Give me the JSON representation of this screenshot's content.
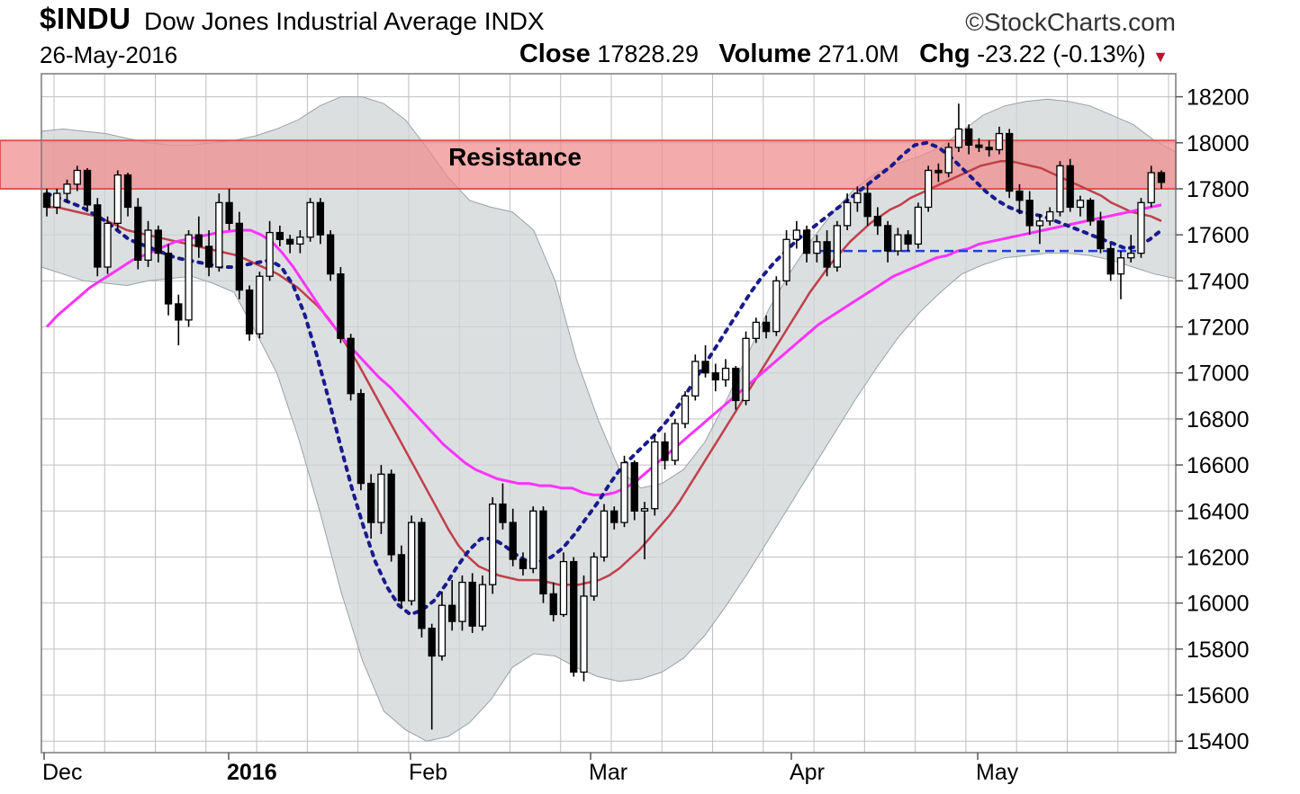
{
  "header": {
    "symbol": "$INDU",
    "name": "Dow Jones Industrial Average",
    "exchange": "INDX",
    "brand": "©StockCharts.com",
    "date": "26-May-2016",
    "close_label": "Close",
    "close_value": "17828.29",
    "volume_label": "Volume",
    "volume_value": "271.0M",
    "chg_label": "Chg",
    "chg_value": "-23.22 (-0.13%)",
    "chg_direction_icon": "down-triangle-icon"
  },
  "colors": {
    "resistance_fill": "#f08a8a",
    "sma_fast": "#c0404a",
    "sma_slow": "#ff33ff",
    "ema_dotted": "#1a1a8c",
    "bollinger_band": "#cfd4d6",
    "support_line": "#1f3fd9",
    "grid": "#bfbfbf"
  },
  "chart_data": {
    "type": "candlestick",
    "title": "",
    "xlabel": "",
    "ylabel": "",
    "ylim": [
      15400,
      18200
    ],
    "y_ticks": [
      "18200",
      "18000",
      "17800",
      "17600",
      "17400",
      "17200",
      "17000",
      "16800",
      "16600",
      "16400",
      "16200",
      "16000",
      "15800",
      "15600",
      "15400"
    ],
    "x_labels": [
      "Dec",
      "2016",
      "Feb",
      "Mar",
      "Apr",
      "May"
    ],
    "x_label_bold": [
      false,
      true,
      false,
      false,
      false,
      false
    ],
    "grid": true,
    "annotation": {
      "text": "Resistance",
      "y_range": [
        17800,
        18010
      ]
    },
    "support_level": 17530,
    "candles": [
      [
        17780,
        17800,
        17680,
        17720
      ],
      [
        17720,
        17800,
        17690,
        17780
      ],
      [
        17780,
        17840,
        17740,
        17820
      ],
      [
        17820,
        17900,
        17790,
        17880
      ],
      [
        17880,
        17890,
        17700,
        17730
      ],
      [
        17730,
        17760,
        17420,
        17460
      ],
      [
        17460,
        17680,
        17430,
        17650
      ],
      [
        17650,
        17880,
        17620,
        17860
      ],
      [
        17860,
        17870,
        17680,
        17720
      ],
      [
        17720,
        17760,
        17450,
        17490
      ],
      [
        17490,
        17660,
        17460,
        17620
      ],
      [
        17620,
        17640,
        17480,
        17520
      ],
      [
        17520,
        17560,
        17250,
        17300
      ],
      [
        17300,
        17340,
        17120,
        17230
      ],
      [
        17230,
        17620,
        17200,
        17600
      ],
      [
        17600,
        17680,
        17500,
        17550
      ],
      [
        17550,
        17620,
        17420,
        17460
      ],
      [
        17460,
        17780,
        17440,
        17740
      ],
      [
        17740,
        17800,
        17620,
        17650
      ],
      [
        17650,
        17700,
        17320,
        17360
      ],
      [
        17360,
        17380,
        17140,
        17170
      ],
      [
        17170,
        17440,
        17150,
        17420
      ],
      [
        17420,
        17660,
        17400,
        17610
      ],
      [
        17610,
        17640,
        17550,
        17580
      ],
      [
        17580,
        17600,
        17520,
        17560
      ],
      [
        17560,
        17620,
        17520,
        17590
      ],
      [
        17590,
        17760,
        17570,
        17740
      ],
      [
        17740,
        17760,
        17560,
        17600
      ],
      [
        17600,
        17620,
        17400,
        17430
      ],
      [
        17430,
        17460,
        17130,
        17150
      ],
      [
        17150,
        17170,
        16880,
        16910
      ],
      [
        16910,
        16930,
        16490,
        16520
      ],
      [
        16520,
        16560,
        16280,
        16350
      ],
      [
        16350,
        16600,
        16300,
        16560
      ],
      [
        16560,
        16580,
        16180,
        16210
      ],
      [
        16210,
        16250,
        15980,
        16010
      ],
      [
        16010,
        16380,
        15990,
        16350
      ],
      [
        16350,
        16370,
        15850,
        15890
      ],
      [
        15890,
        15910,
        15450,
        15770
      ],
      [
        15770,
        16050,
        15750,
        15990
      ],
      [
        15990,
        16100,
        15880,
        15920
      ],
      [
        15920,
        16120,
        15880,
        16090
      ],
      [
        16090,
        16130,
        15870,
        15900
      ],
      [
        15900,
        16120,
        15880,
        16080
      ],
      [
        16080,
        16460,
        16040,
        16430
      ],
      [
        16430,
        16520,
        16320,
        16350
      ],
      [
        16350,
        16410,
        16160,
        16190
      ],
      [
        16190,
        16220,
        16120,
        16150
      ],
      [
        16150,
        16420,
        16130,
        16400
      ],
      [
        16400,
        16420,
        16000,
        16040
      ],
      [
        16040,
        16090,
        15920,
        15950
      ],
      [
        15950,
        16220,
        15940,
        16180
      ],
      [
        16180,
        16200,
        15680,
        15700
      ],
      [
        15700,
        16120,
        15660,
        16030
      ],
      [
        16030,
        16220,
        16010,
        16200
      ],
      [
        16200,
        16430,
        16180,
        16400
      ],
      [
        16400,
        16420,
        16320,
        16350
      ],
      [
        16350,
        16640,
        16330,
        16610
      ],
      [
        16610,
        16620,
        16360,
        16400
      ],
      [
        16400,
        16440,
        16190,
        16410
      ],
      [
        16410,
        16730,
        16380,
        16700
      ],
      [
        16700,
        16740,
        16580,
        16620
      ],
      [
        16620,
        16800,
        16600,
        16780
      ],
      [
        16780,
        16920,
        16760,
        16900
      ],
      [
        16900,
        17080,
        16880,
        17050
      ],
      [
        17050,
        17120,
        16980,
        17000
      ],
      [
        17000,
        17040,
        16920,
        16970
      ],
      [
        16970,
        17060,
        16940,
        17020
      ],
      [
        17020,
        17030,
        16840,
        16880
      ],
      [
        16880,
        17180,
        16860,
        17150
      ],
      [
        17150,
        17240,
        17130,
        17220
      ],
      [
        17220,
        17250,
        17150,
        17180
      ],
      [
        17180,
        17420,
        17160,
        17400
      ],
      [
        17400,
        17620,
        17380,
        17580
      ],
      [
        17580,
        17660,
        17540,
        17620
      ],
      [
        17620,
        17640,
        17480,
        17520
      ],
      [
        17520,
        17600,
        17480,
        17570
      ],
      [
        17570,
        17620,
        17420,
        17460
      ],
      [
        17460,
        17660,
        17440,
        17640
      ],
      [
        17640,
        17780,
        17620,
        17740
      ],
      [
        17740,
        17810,
        17700,
        17780
      ],
      [
        17780,
        17820,
        17640,
        17680
      ],
      [
        17680,
        17720,
        17600,
        17640
      ],
      [
        17640,
        17660,
        17480,
        17530
      ],
      [
        17530,
        17630,
        17510,
        17600
      ],
      [
        17600,
        17620,
        17530,
        17560
      ],
      [
        17560,
        17740,
        17540,
        17720
      ],
      [
        17720,
        17900,
        17700,
        17880
      ],
      [
        17880,
        17910,
        17830,
        17870
      ],
      [
        17870,
        18000,
        17850,
        17980
      ],
      [
        17980,
        18170,
        17960,
        18060
      ],
      [
        18060,
        18080,
        17950,
        17990
      ],
      [
        17990,
        18020,
        17960,
        17980
      ],
      [
        17980,
        18010,
        17940,
        17970
      ],
      [
        17970,
        18070,
        17950,
        18040
      ],
      [
        18040,
        18060,
        17760,
        17790
      ],
      [
        17790,
        17820,
        17690,
        17750
      ],
      [
        17750,
        17790,
        17600,
        17640
      ],
      [
        17640,
        17690,
        17560,
        17660
      ],
      [
        17660,
        17720,
        17640,
        17700
      ],
      [
        17700,
        17920,
        17680,
        17900
      ],
      [
        17900,
        17930,
        17700,
        17720
      ],
      [
        17720,
        17770,
        17680,
        17750
      ],
      [
        17750,
        17760,
        17640,
        17660
      ],
      [
        17660,
        17700,
        17520,
        17540
      ],
      [
        17540,
        17560,
        17400,
        17430
      ],
      [
        17430,
        17530,
        17320,
        17500
      ],
      [
        17500,
        17600,
        17480,
        17520
      ],
      [
        17520,
        17760,
        17500,
        17740
      ],
      [
        17740,
        17900,
        17720,
        17870
      ],
      [
        17870,
        17880,
        17800,
        17828
      ]
    ],
    "series": [
      {
        "name": "",
        "style": "sma_fast",
        "values": [
          17720,
          17720,
          17710,
          17700,
          17690,
          17680,
          17660,
          17640,
          17620,
          17610,
          17600,
          17590,
          17580,
          17570,
          17560,
          17550,
          17540,
          17530,
          17520,
          17510,
          17490,
          17470,
          17450,
          17430,
          17400,
          17370,
          17330,
          17290,
          17240,
          17180,
          17110,
          17040,
          16960,
          16880,
          16800,
          16720,
          16640,
          16560,
          16480,
          16400,
          16320,
          16250,
          16200,
          16160,
          16140,
          16120,
          16110,
          16100,
          16100,
          16100,
          16090,
          16080,
          16080,
          16080,
          16090,
          16100,
          16120,
          16150,
          16190,
          16230,
          16280,
          16330,
          16380,
          16440,
          16510,
          16580,
          16650,
          16720,
          16790,
          16860,
          16930,
          17000,
          17070,
          17140,
          17210,
          17280,
          17350,
          17410,
          17470,
          17520,
          17570,
          17610,
          17650,
          17680,
          17710,
          17730,
          17760,
          17780,
          17800,
          17820,
          17840,
          17860,
          17880,
          17900,
          17910,
          17920,
          17920,
          17910,
          17900,
          17890,
          17870,
          17850,
          17830,
          17810,
          17790,
          17770,
          17740,
          17720,
          17700,
          17690,
          17680,
          17660
        ]
      },
      {
        "name": "",
        "style": "sma_slow",
        "values": [
          17200,
          17250,
          17290,
          17330,
          17370,
          17400,
          17430,
          17460,
          17490,
          17510,
          17530,
          17550,
          17570,
          17580,
          17590,
          17600,
          17610,
          17615,
          17620,
          17620,
          17600,
          17570,
          17520,
          17460,
          17390,
          17320,
          17250,
          17190,
          17130,
          17080,
          17030,
          16980,
          16940,
          16890,
          16840,
          16790,
          16740,
          16690,
          16650,
          16610,
          16580,
          16560,
          16540,
          16530,
          16520,
          16520,
          16510,
          16510,
          16500,
          16500,
          16480,
          16470,
          16470,
          16480,
          16500,
          16530,
          16570,
          16610,
          16650,
          16690,
          16730,
          16770,
          16810,
          16850,
          16890,
          16930,
          16970,
          17010,
          17050,
          17090,
          17130,
          17170,
          17210,
          17240,
          17270,
          17300,
          17330,
          17360,
          17390,
          17420,
          17440,
          17460,
          17480,
          17500,
          17510,
          17530,
          17540,
          17560,
          17570,
          17580,
          17590,
          17600,
          17610,
          17620,
          17630,
          17640,
          17650,
          17660,
          17670,
          17680,
          17690,
          17700,
          17710,
          17720,
          17730
        ]
      },
      {
        "name": "",
        "style": "ema_dotted",
        "values": [
          17780,
          17760,
          17740,
          17720,
          17690,
          17660,
          17620,
          17580,
          17560,
          17540,
          17520,
          17500,
          17490,
          17480,
          17470,
          17460,
          17460,
          17470,
          17480,
          17490,
          17460,
          17380,
          17250,
          17080,
          16890,
          16690,
          16500,
          16330,
          16180,
          16070,
          15990,
          15950,
          15970,
          16010,
          16080,
          16160,
          16230,
          16280,
          16280,
          16250,
          16210,
          16180,
          16180,
          16200,
          16240,
          16300,
          16370,
          16440,
          16520,
          16590,
          16640,
          16690,
          16740,
          16800,
          16870,
          16950,
          17030,
          17110,
          17190,
          17270,
          17350,
          17420,
          17480,
          17530,
          17580,
          17620,
          17660,
          17700,
          17740,
          17780,
          17820,
          17860,
          17900,
          17950,
          17990,
          18000,
          17980,
          17940,
          17890,
          17840,
          17790,
          17750,
          17720,
          17700,
          17690,
          17680,
          17660,
          17640,
          17620,
          17600,
          17580,
          17560,
          17540,
          17550,
          17580,
          17620
        ]
      },
      {
        "name": "",
        "style": "bollinger_upper",
        "values": [
          18050,
          18060,
          18050,
          18040,
          18020,
          18000,
          17990,
          17990,
          18000,
          18010,
          18030,
          18060,
          18100,
          18160,
          18200,
          18200,
          18170,
          18100,
          17980,
          17850,
          17750,
          17720,
          17700,
          17620,
          17400,
          17060,
          16800,
          16580,
          16500,
          16520,
          16580,
          16700,
          16880,
          17080,
          17280,
          17440,
          17580,
          17700,
          17800,
          17870,
          17910,
          17940,
          17980,
          18050,
          18120,
          18160,
          18180,
          18190,
          18180,
          18160,
          18120,
          18080,
          18010,
          17960
        ]
      },
      {
        "name": "",
        "style": "bollinger_lower",
        "values": [
          17460,
          17430,
          17400,
          17390,
          17380,
          17400,
          17410,
          17420,
          17390,
          17350,
          17180,
          17000,
          16720,
          16400,
          16050,
          15750,
          15530,
          15450,
          15400,
          15420,
          15480,
          15580,
          15720,
          15780,
          15770,
          15720,
          15680,
          15660,
          15670,
          15700,
          15760,
          15860,
          15990,
          16130,
          16280,
          16430,
          16580,
          16730,
          16880,
          17020,
          17150,
          17260,
          17350,
          17430,
          17470,
          17500,
          17510,
          17520,
          17520,
          17510,
          17490,
          17460,
          17430,
          17410
        ]
      }
    ]
  }
}
